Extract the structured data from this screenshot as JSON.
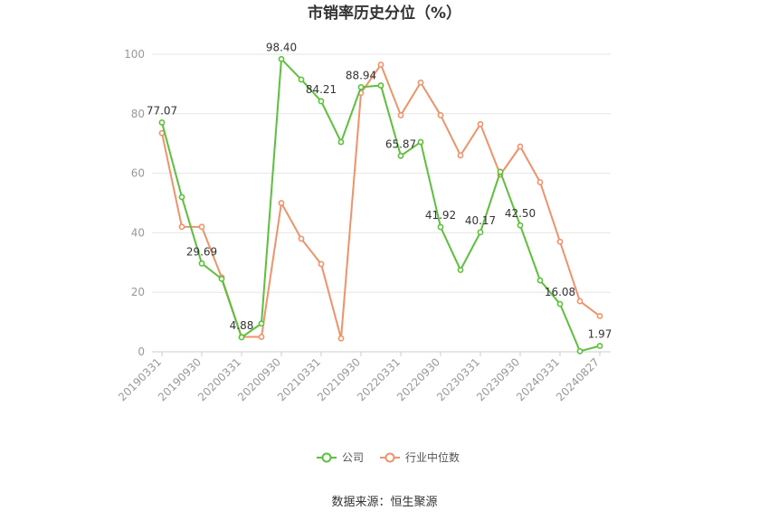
{
  "chart_data": {
    "type": "line",
    "title": "市销率历史分位（%）",
    "source": "数据来源：恒生聚源",
    "ylim": [
      0,
      100
    ],
    "yticks": [
      0,
      20,
      40,
      60,
      80,
      100
    ],
    "grid": true,
    "legend_position": "bottom",
    "xtick_labels": [
      "20190331",
      "20190930",
      "20200331",
      "20200930",
      "20210331",
      "20210930",
      "20220331",
      "20220930",
      "20230331",
      "20230930",
      "20240331",
      "20240827"
    ],
    "x": [
      "20190331",
      "20190630",
      "20190930",
      "20191231",
      "20200331",
      "20200630",
      "20200930",
      "20201231",
      "20210331",
      "20210630",
      "20210930",
      "20211231",
      "20220331",
      "20220630",
      "20220930",
      "20221231",
      "20230331",
      "20230630",
      "20230930",
      "20231231",
      "20240331",
      "20240630",
      "20240827"
    ],
    "series": [
      {
        "name": "公司",
        "color": "#5cc13a",
        "values": [
          77.07,
          52,
          29.69,
          24.5,
          4.88,
          9.5,
          98.4,
          91.5,
          84.21,
          70.5,
          88.94,
          89.5,
          65.87,
          70.5,
          41.92,
          27.5,
          40.17,
          60.5,
          42.5,
          24,
          16.08,
          0.2,
          1.97
        ]
      },
      {
        "name": "行业中位数",
        "color": "#f0926a",
        "values": [
          73.5,
          42,
          42,
          25,
          5,
          5,
          50,
          38,
          29.5,
          4.5,
          87,
          96.5,
          79.5,
          90.5,
          79.5,
          66,
          76.5,
          59.5,
          69,
          57,
          37,
          17,
          12
        ]
      }
    ],
    "data_labels": [
      {
        "index": 0,
        "text": "77.07"
      },
      {
        "index": 2,
        "text": "29.69"
      },
      {
        "index": 4,
        "text": "4.88"
      },
      {
        "index": 6,
        "text": "98.40"
      },
      {
        "index": 8,
        "text": "84.21"
      },
      {
        "index": 10,
        "text": "88.94"
      },
      {
        "index": 12,
        "text": "65.87"
      },
      {
        "index": 14,
        "text": "41.92"
      },
      {
        "index": 16,
        "text": "40.17"
      },
      {
        "index": 18,
        "text": "42.50"
      },
      {
        "index": 20,
        "text": "16.08"
      },
      {
        "index": 22,
        "text": "1.97"
      }
    ]
  }
}
